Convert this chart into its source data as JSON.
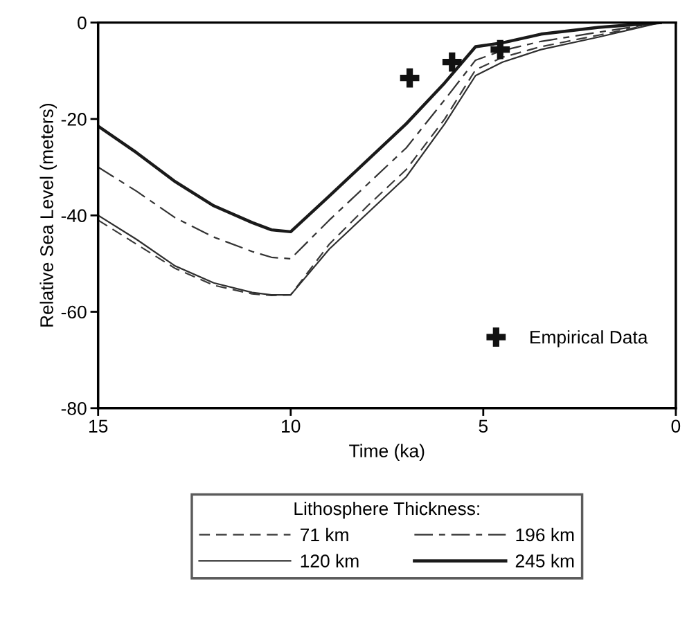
{
  "chart_data": {
    "type": "line",
    "xlabel": "Time (ka)",
    "ylabel": "Relative Sea Level (meters)",
    "legend_title": "Lithosphere Thickness:",
    "legend": "bottom",
    "grid": false,
    "xlim": [
      15,
      0
    ],
    "xticks": [
      15,
      10,
      5,
      0
    ],
    "ylim": [
      -80,
      0
    ],
    "yticks": [
      -80,
      -60,
      -40,
      -20,
      0
    ],
    "series": [
      {
        "name": "71 km",
        "color": "#3a3a3a",
        "line_style": "dashed",
        "x": [
          15,
          14,
          13,
          12,
          11,
          10.5,
          10,
          9,
          8,
          7,
          6,
          5.2,
          4.5,
          3.5,
          2,
          0.4
        ],
        "values": [
          -41,
          -46,
          -51,
          -54.5,
          -56.3,
          -56.6,
          -56.5,
          -46,
          -38,
          -30.5,
          -20,
          -9.8,
          -7.2,
          -5,
          -2.6,
          0
        ]
      },
      {
        "name": "120 km",
        "color": "#2e2e2e",
        "line_style": "solid",
        "x": [
          15,
          14,
          13,
          12,
          11,
          10.5,
          10,
          9,
          8,
          7,
          6,
          5.2,
          4.5,
          3.5,
          2,
          0.4
        ],
        "values": [
          -40,
          -45,
          -50.5,
          -54,
          -56,
          -56.5,
          -56.5,
          -47,
          -39.5,
          -32,
          -21,
          -11,
          -8.2,
          -5.6,
          -3,
          0
        ]
      },
      {
        "name": "196 km",
        "color": "#333333",
        "line_style": "longdash",
        "x": [
          15,
          14,
          13,
          12,
          11,
          10.5,
          10,
          9,
          8,
          7,
          6,
          5.2,
          4.5,
          3.5,
          2,
          0.4
        ],
        "values": [
          -30,
          -35,
          -40.5,
          -44.5,
          -47.5,
          -48.7,
          -49,
          -41,
          -33.5,
          -26,
          -16,
          -7.8,
          -5.8,
          -3.9,
          -2,
          0
        ]
      },
      {
        "name": "245 km",
        "color": "#1a1a1a",
        "line_style": "solid",
        "x": [
          15,
          14,
          13,
          12,
          11,
          10.5,
          10,
          9,
          8,
          7,
          6,
          5.2,
          4.5,
          3.5,
          2,
          0.4
        ],
        "values": [
          -21.5,
          -27,
          -33,
          -38,
          -41.5,
          -43,
          -43.4,
          -36,
          -28.5,
          -21,
          -12.5,
          -5,
          -4.2,
          -2.4,
          -1,
          0
        ]
      },
      {
        "name": "Empirical Data",
        "type": "scatter",
        "marker": "cross",
        "color": "#111111",
        "x": [
          6.91,
          5.81,
          4.56
        ],
        "values": [
          -11.5,
          -8.2,
          -5.6
        ]
      }
    ]
  }
}
